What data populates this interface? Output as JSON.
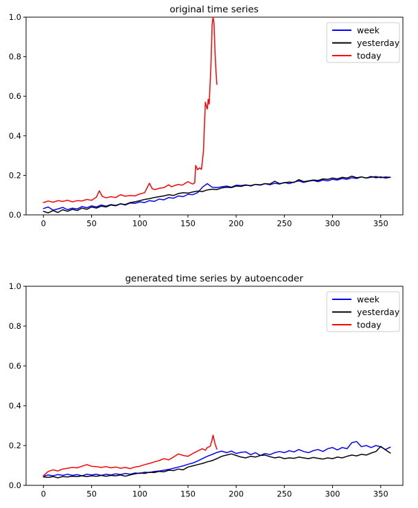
{
  "chart_data": [
    {
      "type": "line",
      "title": "original time series",
      "xlabel": "",
      "ylabel": "",
      "xlim": [
        -18,
        373
      ],
      "ylim": [
        0,
        1
      ],
      "grid": false,
      "x_tick_values": [
        0,
        50,
        100,
        150,
        200,
        250,
        300,
        350
      ],
      "x_tick_labels": [
        "0",
        "50",
        "100",
        "150",
        "200",
        "250",
        "300",
        "350"
      ],
      "y_tick_values": [
        0.0,
        0.2,
        0.4,
        0.6,
        0.8,
        1.0
      ],
      "y_tick_labels": [
        "0.0",
        "0.2",
        "0.4",
        "0.6",
        "0.8",
        "1.0"
      ],
      "legend_position": "upper right",
      "legend": [
        "week",
        "yesterday",
        "today"
      ],
      "series": [
        {
          "name": "week",
          "color": "#0000ff",
          "x_start": 0,
          "x_step": 5,
          "y": [
            0.032,
            0.04,
            0.024,
            0.03,
            0.038,
            0.026,
            0.034,
            0.03,
            0.042,
            0.036,
            0.046,
            0.04,
            0.05,
            0.044,
            0.052,
            0.048,
            0.056,
            0.05,
            0.06,
            0.058,
            0.066,
            0.062,
            0.072,
            0.068,
            0.08,
            0.076,
            0.088,
            0.084,
            0.096,
            0.092,
            0.104,
            0.102,
            0.112,
            0.14,
            0.158,
            0.14,
            0.138,
            0.142,
            0.146,
            0.14,
            0.15,
            0.148,
            0.152,
            0.146,
            0.154,
            0.15,
            0.158,
            0.152,
            0.16,
            0.156,
            0.164,
            0.158,
            0.166,
            0.172,
            0.164,
            0.17,
            0.174,
            0.168,
            0.176,
            0.172,
            0.18,
            0.176,
            0.184,
            0.18,
            0.188,
            0.184,
            0.192,
            0.186,
            0.19,
            0.194,
            0.188,
            0.192,
            0.19
          ]
        },
        {
          "name": "yesterday",
          "color": "#000000",
          "x_start": 0,
          "x_step": 5,
          "y": [
            0.018,
            0.01,
            0.022,
            0.012,
            0.026,
            0.018,
            0.028,
            0.022,
            0.034,
            0.028,
            0.04,
            0.034,
            0.044,
            0.04,
            0.05,
            0.046,
            0.056,
            0.052,
            0.062,
            0.066,
            0.072,
            0.078,
            0.082,
            0.088,
            0.092,
            0.096,
            0.102,
            0.098,
            0.108,
            0.112,
            0.11,
            0.116,
            0.12,
            0.118,
            0.126,
            0.13,
            0.128,
            0.136,
            0.14,
            0.138,
            0.146,
            0.144,
            0.15,
            0.148,
            0.154,
            0.152,
            0.158,
            0.156,
            0.17,
            0.158,
            0.162,
            0.166,
            0.164,
            0.178,
            0.168,
            0.172,
            0.176,
            0.174,
            0.182,
            0.18,
            0.186,
            0.182,
            0.19,
            0.186,
            0.196,
            0.188,
            0.192,
            0.186,
            0.194,
            0.188,
            0.192,
            0.186,
            0.19
          ]
        },
        {
          "name": "today",
          "color": "#ff0000",
          "points": [
            [
              0,
              0.062
            ],
            [
              5,
              0.07
            ],
            [
              10,
              0.064
            ],
            [
              15,
              0.072
            ],
            [
              20,
              0.068
            ],
            [
              25,
              0.074
            ],
            [
              30,
              0.066
            ],
            [
              35,
              0.072
            ],
            [
              40,
              0.07
            ],
            [
              45,
              0.078
            ],
            [
              50,
              0.074
            ],
            [
              55,
              0.09
            ],
            [
              58,
              0.122
            ],
            [
              61,
              0.094
            ],
            [
              65,
              0.086
            ],
            [
              70,
              0.092
            ],
            [
              75,
              0.088
            ],
            [
              80,
              0.102
            ],
            [
              85,
              0.094
            ],
            [
              90,
              0.098
            ],
            [
              95,
              0.096
            ],
            [
              100,
              0.106
            ],
            [
              105,
              0.112
            ],
            [
              110,
              0.16
            ],
            [
              113,
              0.132
            ],
            [
              116,
              0.128
            ],
            [
              120,
              0.134
            ],
            [
              125,
              0.138
            ],
            [
              130,
              0.152
            ],
            [
              133,
              0.142
            ],
            [
              136,
              0.148
            ],
            [
              140,
              0.154
            ],
            [
              144,
              0.15
            ],
            [
              148,
              0.162
            ],
            [
              150,
              0.168
            ],
            [
              153,
              0.16
            ],
            [
              155,
              0.156
            ],
            [
              157,
              0.162
            ],
            [
              158,
              0.25
            ],
            [
              160,
              0.228
            ],
            [
              162,
              0.238
            ],
            [
              164,
              0.23
            ],
            [
              166,
              0.32
            ],
            [
              168,
              0.57
            ],
            [
              170,
              0.535
            ],
            [
              171,
              0.585
            ],
            [
              172,
              0.56
            ],
            [
              174,
              0.78
            ],
            [
              175,
              0.96
            ],
            [
              176,
              1.0
            ],
            [
              177,
              0.97
            ],
            [
              178,
              0.83
            ],
            [
              179,
              0.73
            ],
            [
              180,
              0.66
            ]
          ]
        }
      ]
    },
    {
      "type": "line",
      "title": "generated time series by autoencoder",
      "xlabel": "",
      "ylabel": "",
      "xlim": [
        -18,
        373
      ],
      "ylim": [
        0,
        1
      ],
      "grid": false,
      "x_tick_values": [
        0,
        50,
        100,
        150,
        200,
        250,
        300,
        350
      ],
      "x_tick_labels": [
        "0",
        "50",
        "100",
        "150",
        "200",
        "250",
        "300",
        "350"
      ],
      "y_tick_values": [
        0.0,
        0.2,
        0.4,
        0.6,
        0.8,
        1.0
      ],
      "y_tick_labels": [
        "0.0",
        "0.2",
        "0.4",
        "0.6",
        "0.8",
        "1.0"
      ],
      "legend_position": "upper right",
      "legend": [
        "week",
        "yesterday",
        "today"
      ],
      "series": [
        {
          "name": "week",
          "color": "#0000ff",
          "x_start": 0,
          "x_step": 5,
          "y": [
            0.046,
            0.052,
            0.048,
            0.054,
            0.05,
            0.056,
            0.05,
            0.054,
            0.048,
            0.056,
            0.052,
            0.056,
            0.05,
            0.056,
            0.052,
            0.058,
            0.054,
            0.06,
            0.056,
            0.062,
            0.06,
            0.066,
            0.064,
            0.07,
            0.072,
            0.076,
            0.08,
            0.086,
            0.092,
            0.098,
            0.106,
            0.112,
            0.122,
            0.134,
            0.146,
            0.155,
            0.165,
            0.172,
            0.164,
            0.172,
            0.16,
            0.166,
            0.168,
            0.154,
            0.164,
            0.15,
            0.16,
            0.154,
            0.164,
            0.17,
            0.164,
            0.174,
            0.168,
            0.18,
            0.17,
            0.164,
            0.174,
            0.18,
            0.17,
            0.184,
            0.19,
            0.178,
            0.19,
            0.184,
            0.214,
            0.22,
            0.194,
            0.2,
            0.19,
            0.2,
            0.193,
            0.18,
            0.192
          ]
        },
        {
          "name": "yesterday",
          "color": "#000000",
          "x_start": 0,
          "x_step": 5,
          "y": [
            0.042,
            0.04,
            0.044,
            0.038,
            0.044,
            0.042,
            0.046,
            0.044,
            0.048,
            0.044,
            0.048,
            0.046,
            0.05,
            0.046,
            0.05,
            0.048,
            0.052,
            0.046,
            0.052,
            0.058,
            0.062,
            0.06,
            0.066,
            0.064,
            0.07,
            0.068,
            0.076,
            0.074,
            0.082,
            0.078,
            0.092,
            0.098,
            0.104,
            0.11,
            0.118,
            0.124,
            0.134,
            0.146,
            0.152,
            0.158,
            0.15,
            0.142,
            0.138,
            0.146,
            0.142,
            0.15,
            0.152,
            0.144,
            0.138,
            0.142,
            0.134,
            0.138,
            0.136,
            0.142,
            0.138,
            0.134,
            0.14,
            0.136,
            0.132,
            0.138,
            0.134,
            0.142,
            0.138,
            0.146,
            0.152,
            0.148,
            0.156,
            0.152,
            0.162,
            0.17,
            0.196,
            0.178,
            0.162
          ]
        },
        {
          "name": "today",
          "color": "#ff0000",
          "points": [
            [
              0,
              0.048
            ],
            [
              5,
              0.07
            ],
            [
              10,
              0.078
            ],
            [
              15,
              0.072
            ],
            [
              20,
              0.082
            ],
            [
              25,
              0.086
            ],
            [
              30,
              0.09
            ],
            [
              35,
              0.088
            ],
            [
              40,
              0.096
            ],
            [
              45,
              0.104
            ],
            [
              50,
              0.096
            ],
            [
              55,
              0.094
            ],
            [
              60,
              0.09
            ],
            [
              65,
              0.094
            ],
            [
              70,
              0.088
            ],
            [
              75,
              0.092
            ],
            [
              80,
              0.086
            ],
            [
              85,
              0.09
            ],
            [
              90,
              0.084
            ],
            [
              95,
              0.092
            ],
            [
              100,
              0.096
            ],
            [
              105,
              0.104
            ],
            [
              110,
              0.11
            ],
            [
              115,
              0.118
            ],
            [
              120,
              0.124
            ],
            [
              125,
              0.134
            ],
            [
              130,
              0.128
            ],
            [
              135,
              0.142
            ],
            [
              140,
              0.158
            ],
            [
              145,
              0.15
            ],
            [
              150,
              0.146
            ],
            [
              155,
              0.16
            ],
            [
              160,
              0.172
            ],
            [
              165,
              0.184
            ],
            [
              168,
              0.176
            ],
            [
              170,
              0.19
            ],
            [
              173,
              0.196
            ],
            [
              175,
              0.228
            ],
            [
              176,
              0.252
            ],
            [
              178,
              0.21
            ],
            [
              180,
              0.182
            ]
          ]
        }
      ]
    }
  ],
  "colors": {
    "week": "#0000ff",
    "yesterday": "#000000",
    "today": "#ff0000",
    "axes": "#000000",
    "legend_border": "#cccccc",
    "background": "#ffffff"
  }
}
